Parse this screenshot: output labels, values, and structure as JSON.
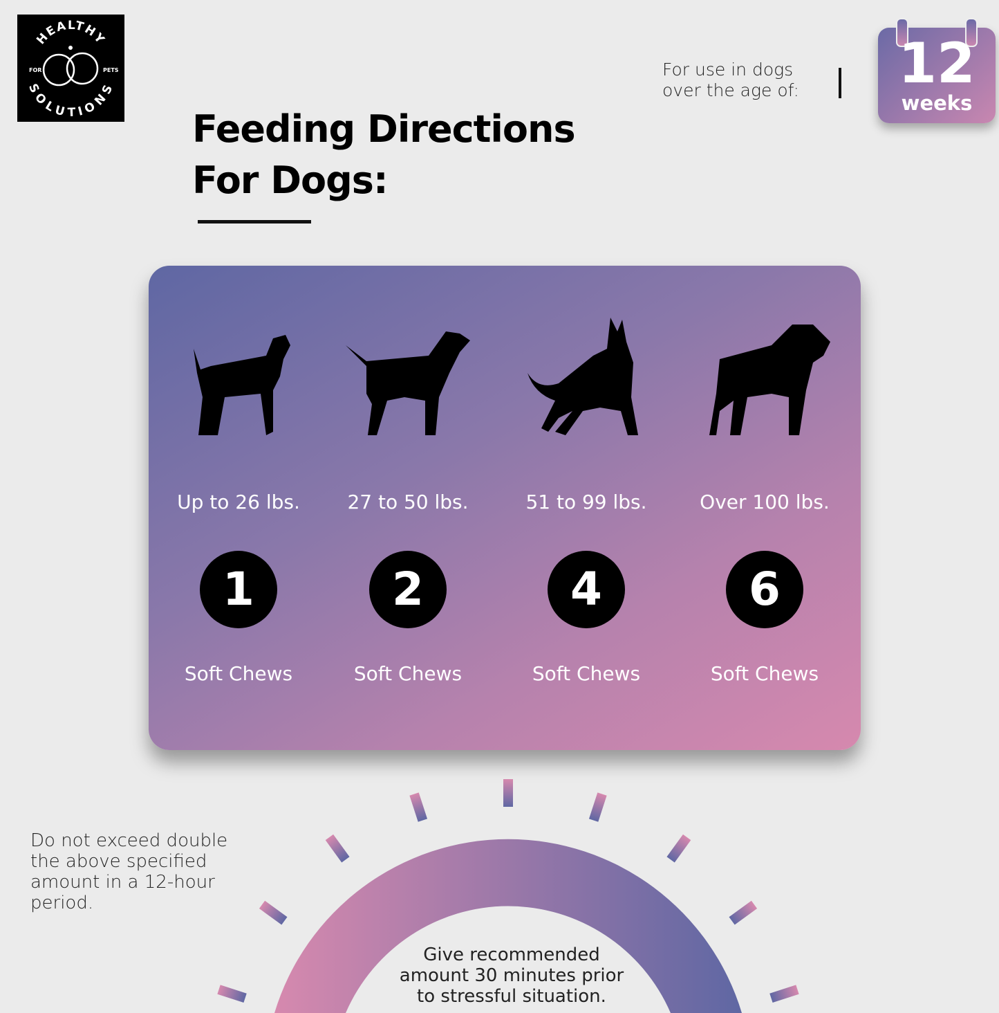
{
  "logo": {
    "text_top": "HEALTHY",
    "text_bottom": "SOLUTIONS",
    "text_left": "FOR",
    "text_right": "PETS"
  },
  "header": {
    "title_line1": "Feeding Directions",
    "title_line2": "For Dogs:"
  },
  "age": {
    "label_line1": "For use in dogs",
    "label_line2": "over the age of:",
    "value": "12",
    "unit": "weeks",
    "icon": "calendar-icon"
  },
  "dosage": [
    {
      "weight": "Up to 26 lbs.",
      "count": "1",
      "unit": "Soft Chews",
      "icon": "terrier-silhouette-icon"
    },
    {
      "weight": "27 to 50 lbs.",
      "count": "2",
      "unit": "Soft Chews",
      "icon": "pitbull-silhouette-icon"
    },
    {
      "weight": "51 to 99 lbs.",
      "count": "4",
      "unit": "Soft Chews",
      "icon": "shepherd-silhouette-icon"
    },
    {
      "weight": "Over 100 lbs.",
      "count": "6",
      "unit": "Soft Chews",
      "icon": "mastiff-silhouette-icon"
    }
  ],
  "warning": {
    "line1": "Do not exceed double",
    "line2": "the above specified",
    "line3": "amount in a 12-hour",
    "line4": "period."
  },
  "note": {
    "line1": "Give recommended",
    "line2": "amount 30 minutes prior",
    "line3": "to stressful situation."
  },
  "colors": {
    "gradient_start": "#5f67a3",
    "gradient_end": "#d689ae",
    "background": "#ebebeb"
  }
}
